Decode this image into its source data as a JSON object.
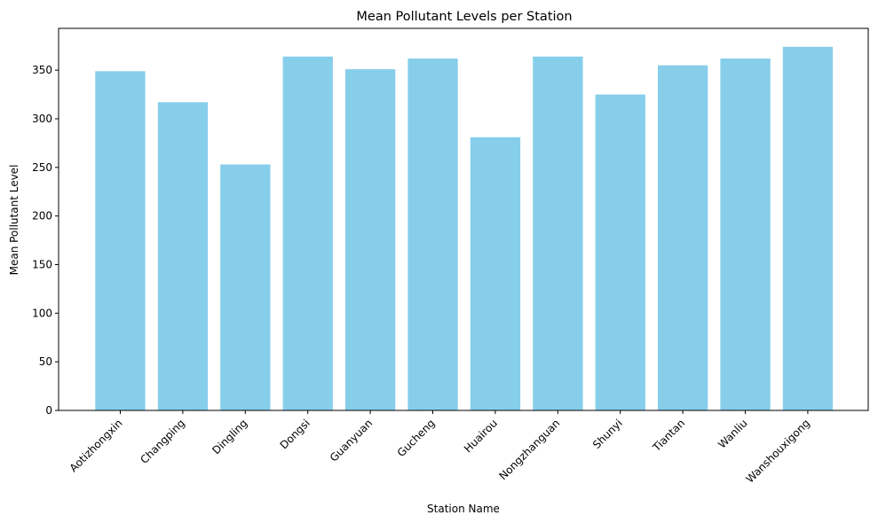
{
  "chart_data": {
    "type": "bar",
    "title": "Mean Pollutant Levels per Station",
    "xlabel": "Station Name",
    "ylabel": "Mean Pollutant Level",
    "categories": [
      "Aotizhongxin",
      "Changping",
      "Dingling",
      "Dongsi",
      "Guanyuan",
      "Gucheng",
      "Huairou",
      "Nongzhanguan",
      "Shunyi",
      "Tiantan",
      "Wanliu",
      "Wanshouxigong"
    ],
    "values": [
      349,
      317,
      253,
      364,
      351,
      362,
      281,
      364,
      325,
      355,
      362,
      374
    ],
    "ylim": [
      0,
      393
    ],
    "yticks": [
      0,
      50,
      100,
      150,
      200,
      250,
      300,
      350
    ],
    "grid": false,
    "bar_color": "#87ceeb"
  }
}
